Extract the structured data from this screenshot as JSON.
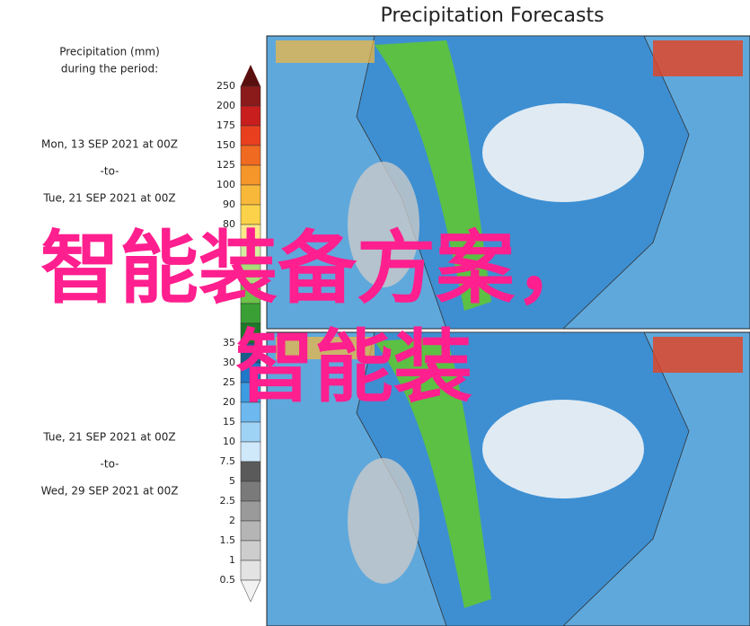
{
  "header": {
    "title": "Precipitation Forecasts"
  },
  "legend": {
    "title": [
      "Precipitation (mm)",
      "during the period:"
    ],
    "ticks": [
      250,
      200,
      175,
      150,
      125,
      100,
      90,
      80,
      35,
      30,
      25,
      20,
      15,
      10,
      7.5,
      5,
      2.5,
      2,
      1.5,
      1,
      0.5
    ]
  },
  "periods": [
    {
      "start": "Mon, 13 SEP 2021 at 00Z",
      "to": "-to-",
      "end": "Tue, 21 SEP 2021 at 00Z"
    },
    {
      "start": "Tue, 21 SEP 2021 at 00Z",
      "to": "-to-",
      "end": "Wed, 29 SEP 2021 at 00Z"
    }
  ],
  "overlay": {
    "line1": "智能装备方案，",
    "line2": "智能装"
  }
}
